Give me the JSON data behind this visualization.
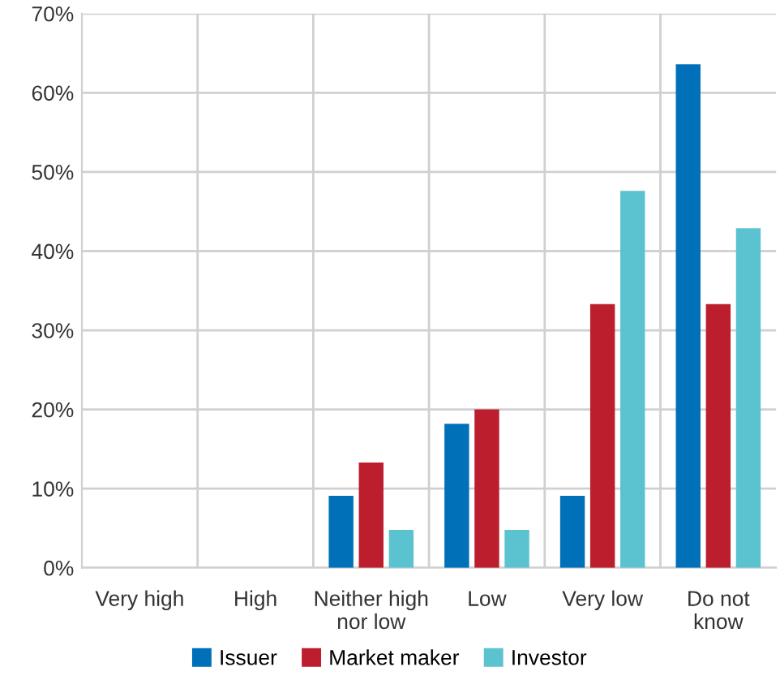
{
  "chart_data": {
    "type": "bar",
    "categories": [
      "Very high",
      "High",
      "Neither high\nnor low",
      "Low",
      "Very low",
      "Do not\nknow"
    ],
    "series": [
      {
        "name": "Issuer",
        "color": "#0070b8",
        "values": [
          0,
          0,
          9.1,
          18.2,
          9.1,
          63.6
        ]
      },
      {
        "name": "Market maker",
        "color": "#bc1e2d",
        "values": [
          0,
          0,
          13.3,
          20,
          33.3,
          33.3
        ]
      },
      {
        "name": "Investor",
        "color": "#5bc2d0",
        "values": [
          0,
          0,
          4.8,
          4.8,
          47.6,
          42.9
        ]
      }
    ],
    "ylim": [
      0,
      70
    ],
    "yticks": [
      {
        "value": 0,
        "label": "0%"
      },
      {
        "value": 10,
        "label": "10%"
      },
      {
        "value": 20,
        "label": "20%"
      },
      {
        "value": 30,
        "label": "30%"
      },
      {
        "value": 40,
        "label": "40%"
      },
      {
        "value": 50,
        "label": "50%"
      },
      {
        "value": 60,
        "label": "60%"
      },
      {
        "value": 70,
        "label": "70%"
      }
    ],
    "grid": true,
    "legend": "bottom"
  }
}
